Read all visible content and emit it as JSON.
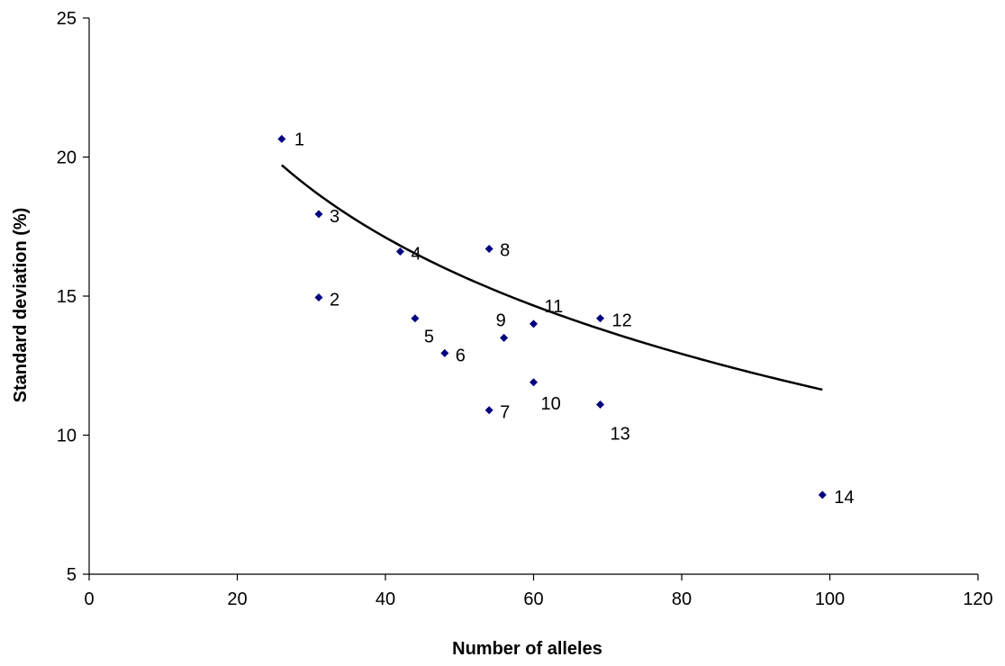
{
  "chart_data": {
    "type": "scatter",
    "title": "",
    "xlabel": "Number of alleles",
    "ylabel": "Standard deviation (%)",
    "xlim": [
      0,
      120
    ],
    "ylim": [
      5,
      25
    ],
    "x_ticks": [
      0,
      20,
      40,
      60,
      80,
      100,
      120
    ],
    "y_ticks": [
      5,
      10,
      15,
      20,
      25
    ],
    "grid": false,
    "legend": "none",
    "marker": "diamond",
    "point_color": "#000080",
    "trendline_color": "#000000",
    "points": [
      {
        "label": "1",
        "x": 26,
        "y": 20.65
      },
      {
        "label": "2",
        "x": 31,
        "y": 14.95
      },
      {
        "label": "3",
        "x": 31,
        "y": 17.95
      },
      {
        "label": "4",
        "x": 42,
        "y": 16.6
      },
      {
        "label": "5",
        "x": 44,
        "y": 14.2
      },
      {
        "label": "6",
        "x": 48,
        "y": 12.95
      },
      {
        "label": "7",
        "x": 54,
        "y": 10.9
      },
      {
        "label": "8",
        "x": 54,
        "y": 16.7
      },
      {
        "label": "9",
        "x": 56,
        "y": 13.5
      },
      {
        "label": "10",
        "x": 60,
        "y": 11.9
      },
      {
        "label": "11",
        "x": 60,
        "y": 14.0
      },
      {
        "label": "12",
        "x": 69,
        "y": 14.2
      },
      {
        "label": "13",
        "x": 69,
        "y": 11.1
      },
      {
        "label": "14",
        "x": 99,
        "y": 7.85
      }
    ],
    "trendline": {
      "type": "logarithmic",
      "x_range": [
        26,
        99
      ],
      "intercept": 39.39,
      "slope": -6.04
    }
  }
}
